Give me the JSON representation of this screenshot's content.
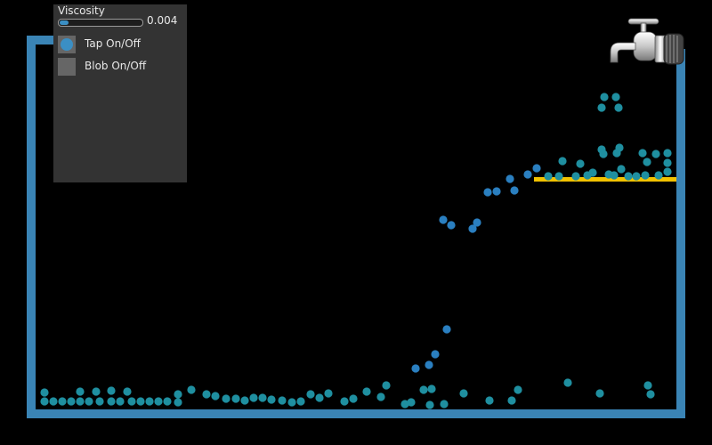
{
  "controls": {
    "viscosity_label": "Viscosity",
    "viscosity_value": "0.004",
    "viscosity_fraction": 0.06,
    "tap_label": "Tap On/Off",
    "tap_on": true,
    "blob_label": "Blob On/Off",
    "blob_on": false
  },
  "colors": {
    "container": "#3a84b5",
    "shelf": "#f2c200",
    "particle": "#1f8fa0",
    "particle_fast": "#2a7fc0",
    "panel": "#333333",
    "accent": "#3b8fc4"
  },
  "icons": {
    "tap": "water-tap-icon"
  }
}
